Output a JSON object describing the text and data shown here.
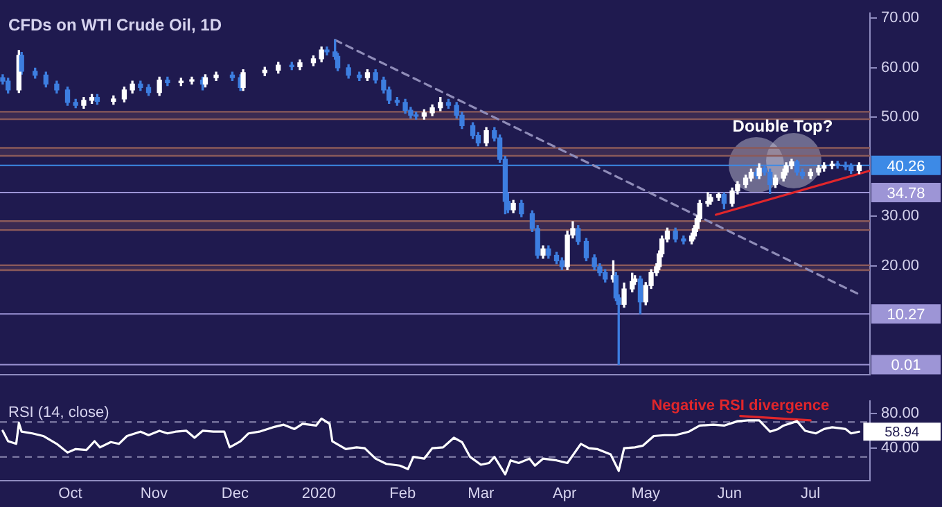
{
  "chart_data": [
    {
      "type": "candlestick",
      "title": "CFDs on WTI Crude Oil, 1D",
      "x": [
        "2019-09-06",
        "2019-09-08",
        "2019-09-12",
        "2019-09-13",
        "2019-09-18",
        "2019-09-22",
        "2019-09-26",
        "2019-09-30",
        "2019-10-03",
        "2019-10-06",
        "2019-10-09",
        "2019-10-11",
        "2019-10-17",
        "2019-10-21",
        "2019-10-24",
        "2019-10-27",
        "2019-10-30",
        "2019-11-03",
        "2019-11-06",
        "2019-11-11",
        "2019-11-15",
        "2019-11-19",
        "2019-11-20",
        "2019-11-24",
        "2019-11-30",
        "2019-12-03",
        "2019-12-04",
        "2019-12-12",
        "2019-12-17",
        "2019-12-22",
        "2019-12-25",
        "2019-12-30",
        "2020-01-02",
        "2020-01-04",
        "2020-01-07",
        "2020-01-08",
        "2020-01-12",
        "2020-01-16",
        "2020-01-19",
        "2020-01-22",
        "2020-01-25",
        "2020-01-27",
        "2020-01-30",
        "2020-02-02",
        "2020-02-04",
        "2020-02-06",
        "2020-02-09",
        "2020-02-12",
        "2020-02-15",
        "2020-02-18",
        "2020-02-21",
        "2020-02-23",
        "2020-02-27",
        "2020-02-29",
        "2020-03-03",
        "2020-03-06",
        "2020-03-08",
        "2020-03-10",
        "2020-03-11",
        "2020-03-13",
        "2020-03-16",
        "2020-03-20",
        "2020-03-22",
        "2020-03-24",
        "2020-03-26",
        "2020-03-29",
        "2020-03-31",
        "2020-04-02",
        "2020-04-04",
        "2020-04-06",
        "2020-04-09",
        "2020-04-12",
        "2020-04-14",
        "2020-04-16",
        "2020-04-19",
        "2020-04-20",
        "2020-04-21",
        "2020-04-23",
        "2020-04-26",
        "2020-04-27",
        "2020-04-29",
        "2020-05-01",
        "2020-05-03",
        "2020-05-05",
        "2020-05-06",
        "2020-05-07",
        "2020-05-09",
        "2020-05-12",
        "2020-05-15",
        "2020-05-18",
        "2020-05-19",
        "2020-05-20",
        "2020-05-21",
        "2020-05-24",
        "2020-05-25",
        "2020-05-28",
        "2020-05-30",
        "2020-06-02",
        "2020-06-04",
        "2020-06-07",
        "2020-06-09",
        "2020-06-11",
        "2020-06-12",
        "2020-06-14",
        "2020-06-16",
        "2020-06-18",
        "2020-06-21",
        "2020-06-22",
        "2020-06-24",
        "2020-06-26",
        "2020-06-28",
        "2020-07-01",
        "2020-07-04",
        "2020-07-06",
        "2020-07-09",
        "2020-07-11",
        "2020-07-14",
        "2020-07-16",
        "2020-07-19"
      ],
      "ohlc": [
        [
          58.0,
          58.6,
          56.7,
          57.3
        ],
        [
          57.3,
          57.9,
          54.9,
          55.5
        ],
        [
          55.5,
          63.5,
          55.0,
          62.5
        ],
        [
          62.5,
          63.1,
          58.7,
          59.3
        ],
        [
          59.3,
          59.9,
          57.9,
          58.5
        ],
        [
          58.5,
          59.1,
          56.1,
          56.7
        ],
        [
          56.7,
          57.3,
          54.9,
          55.5
        ],
        [
          55.5,
          56.1,
          52.4,
          53.0
        ],
        [
          53.0,
          53.6,
          51.9,
          52.4
        ],
        [
          52.4,
          54.0,
          51.8,
          53.4
        ],
        [
          53.4,
          54.6,
          52.8,
          54.0
        ],
        [
          54.0,
          54.6,
          52.6,
          53.2
        ],
        [
          53.2,
          54.3,
          52.6,
          53.7
        ],
        [
          53.7,
          56.1,
          53.1,
          55.5
        ],
        [
          55.5,
          57.3,
          54.9,
          56.7
        ],
        [
          56.7,
          57.3,
          55.4,
          56.0
        ],
        [
          56.0,
          56.6,
          54.4,
          55.0
        ],
        [
          55.0,
          58.1,
          54.4,
          57.5
        ],
        [
          57.5,
          58.1,
          56.4,
          57.0
        ],
        [
          57.0,
          57.9,
          56.4,
          57.3
        ],
        [
          57.3,
          58.1,
          56.7,
          57.5
        ],
        [
          57.5,
          58.1,
          55.5,
          56.7
        ],
        [
          56.7,
          58.6,
          56.1,
          58.0
        ],
        [
          58.0,
          59.1,
          57.4,
          58.5
        ],
        [
          58.5,
          59.1,
          57.4,
          58.0
        ],
        [
          58.0,
          58.6,
          55.4,
          56.0
        ],
        [
          56.0,
          59.6,
          55.4,
          59.0
        ],
        [
          59.0,
          60.1,
          58.4,
          59.5
        ],
        [
          59.5,
          61.1,
          58.9,
          60.5
        ],
        [
          60.5,
          61.1,
          59.6,
          60.2
        ],
        [
          60.2,
          61.6,
          59.6,
          61.0
        ],
        [
          61.0,
          62.4,
          60.4,
          61.8
        ],
        [
          61.8,
          64.2,
          61.2,
          63.6
        ],
        [
          63.6,
          64.2,
          62.6,
          63.2
        ],
        [
          63.2,
          65.6,
          61.7,
          62.3
        ],
        [
          62.3,
          62.9,
          59.4,
          60.0
        ],
        [
          60.0,
          60.6,
          57.9,
          58.5
        ],
        [
          58.5,
          59.1,
          57.4,
          58.0
        ],
        [
          58.0,
          59.6,
          57.4,
          59.0
        ],
        [
          59.0,
          59.6,
          56.9,
          57.5
        ],
        [
          57.5,
          58.1,
          54.9,
          55.5
        ],
        [
          55.5,
          56.1,
          52.8,
          53.4
        ],
        [
          53.4,
          54.0,
          52.4,
          53.0
        ],
        [
          53.0,
          53.6,
          50.8,
          51.4
        ],
        [
          51.4,
          52.0,
          49.8,
          50.4
        ],
        [
          50.4,
          51.0,
          49.6,
          50.2
        ],
        [
          50.2,
          51.5,
          49.6,
          50.9
        ],
        [
          50.9,
          52.5,
          50.3,
          51.9
        ],
        [
          51.9,
          54.0,
          51.3,
          53.0
        ],
        [
          53.0,
          53.6,
          51.8,
          52.4
        ],
        [
          52.4,
          53.0,
          49.8,
          50.4
        ],
        [
          50.4,
          51.0,
          47.7,
          48.3
        ],
        [
          48.3,
          48.9,
          45.7,
          46.3
        ],
        [
          46.3,
          46.9,
          44.2,
          44.8
        ],
        [
          44.8,
          47.9,
          44.2,
          47.3
        ],
        [
          47.3,
          47.9,
          45.2,
          45.8
        ],
        [
          45.8,
          46.4,
          40.9,
          41.5
        ],
        [
          41.5,
          42.1,
          30.5,
          33.0
        ],
        [
          33.0,
          34.6,
          30.7,
          31.3
        ],
        [
          31.3,
          33.2,
          30.7,
          32.6
        ],
        [
          32.6,
          33.2,
          29.9,
          30.5
        ],
        [
          30.5,
          31.1,
          26.9,
          27.5
        ],
        [
          27.5,
          28.1,
          21.5,
          22.1
        ],
        [
          22.1,
          24.0,
          21.5,
          23.4
        ],
        [
          23.4,
          24.0,
          21.5,
          22.1
        ],
        [
          22.1,
          22.7,
          20.4,
          21.0
        ],
        [
          21.0,
          21.6,
          19.2,
          19.8
        ],
        [
          19.8,
          27.0,
          19.2,
          26.2
        ],
        [
          26.2,
          28.9,
          25.6,
          27.5
        ],
        [
          27.5,
          28.1,
          24.3,
          24.9
        ],
        [
          24.9,
          25.5,
          21.0,
          21.6
        ],
        [
          21.6,
          22.2,
          19.2,
          19.8
        ],
        [
          19.8,
          20.4,
          18.0,
          18.6
        ],
        [
          18.6,
          19.2,
          16.7,
          17.3
        ],
        [
          17.3,
          21.0,
          16.7,
          18.0
        ],
        [
          18.0,
          18.6,
          12.9,
          13.5
        ],
        [
          13.5,
          14.1,
          0.01,
          12.2
        ],
        [
          12.2,
          16.5,
          11.6,
          15.3
        ],
        [
          15.3,
          18.5,
          14.7,
          16.8
        ],
        [
          16.8,
          18.0,
          16.2,
          17.3
        ],
        [
          17.3,
          17.9,
          10.27,
          12.7
        ],
        [
          12.7,
          16.6,
          12.1,
          16.0
        ],
        [
          16.0,
          19.2,
          15.4,
          18.6
        ],
        [
          18.6,
          20.4,
          18.0,
          19.8
        ],
        [
          19.8,
          23.0,
          19.2,
          22.4
        ],
        [
          22.4,
          26.0,
          21.8,
          25.4
        ],
        [
          25.4,
          27.6,
          24.8,
          27.0
        ],
        [
          27.0,
          27.6,
          24.8,
          25.4
        ],
        [
          25.4,
          26.0,
          24.4,
          25.0
        ],
        [
          25.0,
          26.6,
          24.4,
          26.0
        ],
        [
          26.0,
          28.1,
          25.4,
          27.5
        ],
        [
          27.5,
          30.1,
          26.9,
          29.5
        ],
        [
          29.5,
          33.2,
          28.9,
          32.6
        ],
        [
          32.6,
          34.78,
          32.0,
          33.0
        ],
        [
          33.0,
          34.4,
          32.4,
          33.8
        ],
        [
          33.8,
          34.7,
          33.2,
          34.4
        ],
        [
          34.4,
          34.7,
          31.5,
          32.6
        ],
        [
          32.6,
          35.7,
          32.0,
          35.1
        ],
        [
          35.1,
          37.0,
          34.5,
          36.4
        ],
        [
          36.4,
          38.3,
          35.8,
          37.7
        ],
        [
          37.7,
          39.5,
          37.1,
          38.9
        ],
        [
          38.9,
          39.5,
          37.6,
          38.2
        ],
        [
          38.2,
          40.6,
          37.6,
          39.7
        ],
        [
          39.7,
          40.3,
          38.3,
          38.9
        ],
        [
          38.9,
          39.5,
          34.6,
          36.4
        ],
        [
          36.4,
          38.3,
          35.8,
          37.7
        ],
        [
          37.7,
          39.5,
          37.1,
          38.9
        ],
        [
          38.9,
          40.8,
          38.3,
          40.2
        ],
        [
          40.2,
          41.5,
          39.6,
          41.0
        ],
        [
          41.0,
          41.3,
          38.3,
          38.9
        ],
        [
          38.9,
          39.5,
          37.6,
          38.2
        ],
        [
          38.2,
          39.5,
          37.6,
          38.9
        ],
        [
          38.9,
          40.3,
          38.3,
          39.7
        ],
        [
          39.7,
          40.8,
          39.1,
          40.2
        ],
        [
          40.2,
          41.1,
          39.6,
          40.5
        ],
        [
          40.5,
          41.1,
          39.7,
          40.3
        ],
        [
          40.3,
          40.9,
          39.4,
          40.0
        ],
        [
          40.0,
          40.6,
          38.6,
          39.2
        ],
        [
          39.2,
          40.8,
          38.6,
          40.26
        ]
      ],
      "series": [
        {
          "type": "line",
          "x": [
            "2020-01-07",
            "2020-07-19"
          ],
          "values": [
            65.6,
            14.2
          ],
          "color": "#8f8cb8",
          "line_style": "dashed"
        },
        {
          "type": "line",
          "x": [
            "2020-05-27",
            "2020-07-23"
          ],
          "values": [
            30.3,
            39.2
          ],
          "color": "#e0262b"
        }
      ],
      "xlim": [
        "2019-09-05",
        "2020-07-23"
      ],
      "ylim": [
        -2,
        71
      ],
      "yticks": [
        {
          "value": 20,
          "label": "20.00"
        },
        {
          "value": 30,
          "label": "30.00"
        },
        {
          "value": 50,
          "label": "50.00"
        },
        {
          "value": 60,
          "label": "60.00"
        },
        {
          "value": 70,
          "label": "70.00"
        }
      ],
      "tick_labels": "y",
      "bands": [
        {
          "axis": "y",
          "from": 49.6,
          "to": 51.1,
          "color": "#8b5a5a"
        },
        {
          "axis": "y",
          "from": 42.2,
          "to": 43.8,
          "color": "#8b5a5a"
        },
        {
          "axis": "y",
          "from": 27.2,
          "to": 29.0,
          "color": "#8b5a5a"
        },
        {
          "axis": "y",
          "from": 19.1,
          "to": 20.1,
          "color": "#8b5a5a"
        }
      ],
      "ref_lines": [
        {
          "axis": "y",
          "value": 40.26,
          "label": "40.26",
          "color": "#3d8ae6"
        },
        {
          "axis": "y",
          "value": 34.78,
          "label": "34.78",
          "color": "#9d95d6"
        },
        {
          "axis": "y",
          "value": 10.27,
          "label": "10.27",
          "color": "#9d95d6"
        },
        {
          "axis": "y",
          "value": 0.01,
          "label": "0.01",
          "color": "#9d95d6"
        }
      ],
      "annotations": [
        "Double Top?"
      ]
    },
    {
      "type": "line",
      "title": "RSI (14, close)",
      "x": [
        "2019-09-06",
        "2019-09-08",
        "2019-09-11",
        "2019-09-12",
        "2019-09-13",
        "2019-09-17",
        "2019-09-21",
        "2019-09-26",
        "2019-09-30",
        "2019-10-03",
        "2019-10-07",
        "2019-10-10",
        "2019-10-12",
        "2019-10-16",
        "2019-10-19",
        "2019-10-22",
        "2019-10-27",
        "2019-10-30",
        "2019-11-03",
        "2019-11-06",
        "2019-11-09",
        "2019-11-13",
        "2019-11-16",
        "2019-11-19",
        "2019-11-23",
        "2019-11-27",
        "2019-11-29",
        "2019-12-03",
        "2019-12-06",
        "2019-12-10",
        "2019-12-15",
        "2019-12-19",
        "2019-12-23",
        "2019-12-26",
        "2019-12-31",
        "2020-01-02",
        "2020-01-05",
        "2020-01-06",
        "2020-01-11",
        "2020-01-15",
        "2020-01-18",
        "2020-01-22",
        "2020-01-26",
        "2020-01-31",
        "2020-02-03",
        "2020-02-05",
        "2020-02-09",
        "2020-02-12",
        "2020-02-16",
        "2020-02-20",
        "2020-02-23",
        "2020-02-26",
        "2020-03-01",
        "2020-03-04",
        "2020-03-06",
        "2020-03-10",
        "2020-03-12",
        "2020-03-15",
        "2020-03-19",
        "2020-03-21",
        "2020-03-24",
        "2020-03-29",
        "2020-04-02",
        "2020-04-07",
        "2020-04-10",
        "2020-04-13",
        "2020-04-18",
        "2020-04-21",
        "2020-04-23",
        "2020-04-27",
        "2020-04-30",
        "2020-05-04",
        "2020-05-08",
        "2020-05-12",
        "2020-05-17",
        "2020-05-21",
        "2020-05-26",
        "2020-05-30",
        "2020-06-04",
        "2020-06-08",
        "2020-06-12",
        "2020-06-16",
        "2020-06-19",
        "2020-06-21",
        "2020-06-26",
        "2020-06-29",
        "2020-07-03",
        "2020-07-06",
        "2020-07-09",
        "2020-07-14",
        "2020-07-16",
        "2020-07-19"
      ],
      "series": [
        {
          "color": "#ffffff",
          "values": [
            60,
            48,
            45,
            69,
            59,
            57,
            54,
            45,
            35,
            39,
            38,
            48,
            41,
            47,
            45,
            54,
            59,
            55,
            60,
            57,
            59,
            60,
            52,
            60,
            59,
            59,
            41,
            48,
            57,
            59,
            64,
            67,
            62,
            68,
            66,
            74,
            68,
            48,
            39,
            41,
            40,
            28,
            22,
            20,
            16,
            30,
            28,
            40,
            41,
            52,
            47,
            30,
            21,
            23,
            30,
            10,
            26,
            23,
            28,
            20,
            28,
            26,
            23,
            45,
            40,
            39,
            33,
            14,
            40,
            41,
            43,
            54,
            55,
            55,
            59,
            66,
            67,
            66,
            71,
            72,
            72,
            59,
            62,
            66,
            71,
            60,
            57,
            62,
            64,
            62,
            57,
            58.94
          ],
          "value_labels": [
            null,
            null,
            null,
            null,
            null,
            null,
            null,
            null,
            null,
            null,
            null,
            null,
            null,
            null,
            null,
            null,
            null,
            null,
            null,
            null,
            null,
            null,
            null,
            null,
            null,
            null,
            null,
            null,
            null,
            null,
            null,
            null,
            null,
            null,
            null,
            null,
            null,
            null,
            null,
            null,
            null,
            null,
            null,
            null,
            null,
            null,
            null,
            null,
            null,
            null,
            null,
            null,
            null,
            null,
            null,
            null,
            null,
            null,
            null,
            null,
            null,
            null,
            null,
            null,
            null,
            null,
            null,
            null,
            null,
            null,
            null,
            null,
            null,
            null,
            null,
            null,
            null,
            null,
            null,
            null,
            null,
            null,
            null,
            null,
            null,
            null,
            null,
            null,
            null,
            null,
            null,
            "58.94"
          ]
        },
        {
          "x": [
            "2020-06-05",
            "2020-07-01"
          ],
          "values": [
            77,
            72
          ],
          "color": "#e0262b"
        }
      ],
      "xlim": [
        "2019-09-05",
        "2020-07-23"
      ],
      "xticks": [
        {
          "value": "2019-10-01",
          "label": "Oct"
        },
        {
          "value": "2019-11-01",
          "label": "Nov"
        },
        {
          "value": "2019-12-01",
          "label": "Dec"
        },
        {
          "value": "2020-01-01",
          "label": "2020"
        },
        {
          "value": "2020-02-01",
          "label": "Feb"
        },
        {
          "value": "2020-03-01",
          "label": "Mar"
        },
        {
          "value": "2020-04-01",
          "label": "Apr"
        },
        {
          "value": "2020-05-01",
          "label": "May"
        },
        {
          "value": "2020-06-01",
          "label": "Jun"
        },
        {
          "value": "2020-07-01",
          "label": "Jul"
        }
      ],
      "ylim": [
        3,
        94
      ],
      "yticks": [
        {
          "value": 40,
          "label": "40.00"
        },
        {
          "value": 80,
          "label": "80.00"
        }
      ],
      "ref_lines": [
        {
          "axis": "y",
          "value": 70,
          "color": "#8c88b0",
          "line_style": "dashed"
        },
        {
          "axis": "y",
          "value": 30,
          "color": "#8c88b0",
          "line_style": "dashed"
        }
      ],
      "annotations": [
        {
          "text": "Negative RSI divergence",
          "x": "2020-06-05",
          "y": 77
        }
      ]
    }
  ]
}
